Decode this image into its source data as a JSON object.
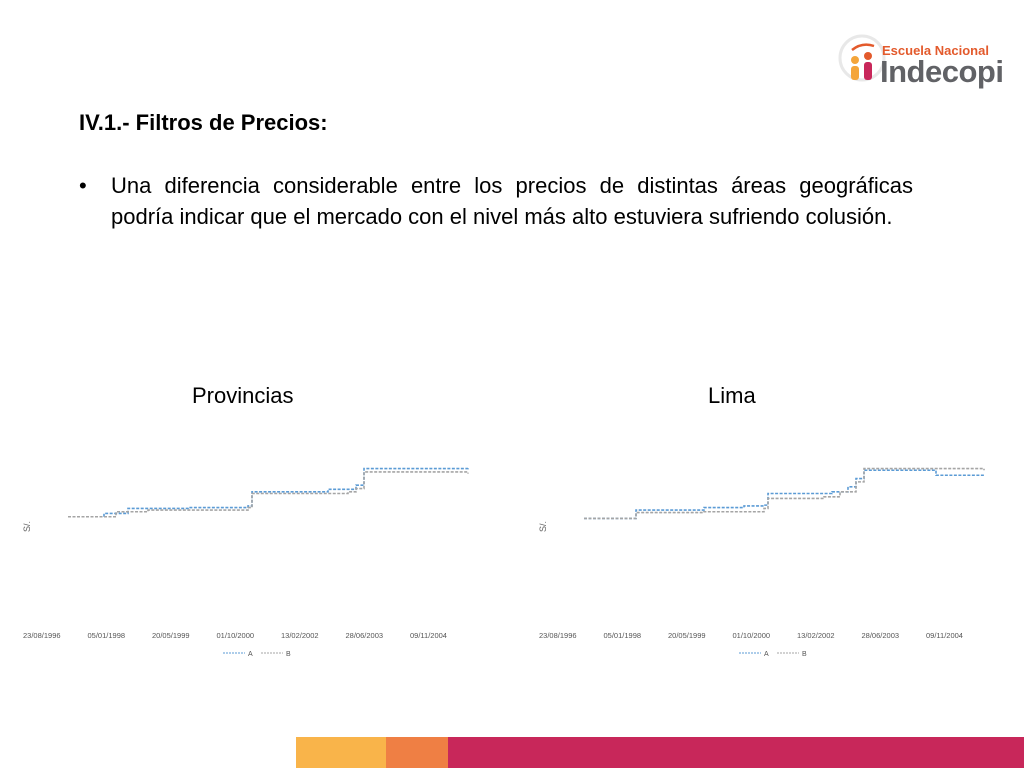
{
  "logo": {
    "line1": "Escuela Nacional",
    "line2": "Indecopi"
  },
  "slide": {
    "title": "IV.1.- Filtros de Precios:",
    "bullet_marker": "•",
    "bullet_text": "Una diferencia considerable entre los precios de distintas áreas geográficas podría indicar que el mercado con el nivel más alto estuviera sufriendo colusión."
  },
  "colors": {
    "series_a": "#5b9bd5",
    "series_b": "#a5a5a5",
    "band1": "#f9b44a",
    "band2": "#ef7f44",
    "band3": "#c8275a"
  },
  "chart_data": [
    {
      "type": "line",
      "title": "Provincias",
      "ylabel": "S/.",
      "xticks": [
        "23/08/1996",
        "05/01/1998",
        "20/05/1999",
        "01/10/2000",
        "13/02/2002",
        "28/06/2003",
        "09/11/2004"
      ],
      "series": [
        {
          "name": "A",
          "style": "dashed",
          "color": "#5b9bd5",
          "points": [
            [
              0,
              0.22
            ],
            [
              0.08,
              0.22
            ],
            [
              0.09,
              0.26
            ],
            [
              0.15,
              0.32
            ],
            [
              0.3,
              0.33
            ],
            [
              0.45,
              0.35
            ],
            [
              0.46,
              0.52
            ],
            [
              0.65,
              0.55
            ],
            [
              0.72,
              0.6
            ],
            [
              0.74,
              0.8
            ],
            [
              1.0,
              0.82
            ]
          ]
        },
        {
          "name": "B",
          "style": "dashed",
          "color": "#a5a5a5",
          "points": [
            [
              0,
              0.22
            ],
            [
              0.1,
              0.22
            ],
            [
              0.12,
              0.28
            ],
            [
              0.2,
              0.3
            ],
            [
              0.45,
              0.33
            ],
            [
              0.46,
              0.5
            ],
            [
              0.7,
              0.52
            ],
            [
              0.72,
              0.56
            ],
            [
              0.74,
              0.76
            ],
            [
              1.0,
              0.74
            ]
          ]
        }
      ]
    },
    {
      "type": "line",
      "title": "Lima",
      "ylabel": "S/.",
      "xticks": [
        "23/08/1996",
        "05/01/1998",
        "20/05/1999",
        "01/10/2000",
        "13/02/2002",
        "28/06/2003",
        "09/11/2004"
      ],
      "series": [
        {
          "name": "A",
          "style": "dashed",
          "color": "#5b9bd5",
          "points": [
            [
              0,
              0.2
            ],
            [
              0.12,
              0.2
            ],
            [
              0.13,
              0.3
            ],
            [
              0.3,
              0.33
            ],
            [
              0.4,
              0.35
            ],
            [
              0.45,
              0.36
            ],
            [
              0.46,
              0.5
            ],
            [
              0.62,
              0.52
            ],
            [
              0.66,
              0.58
            ],
            [
              0.68,
              0.68
            ],
            [
              0.7,
              0.78
            ],
            [
              0.85,
              0.78
            ],
            [
              0.88,
              0.72
            ],
            [
              1.0,
              0.72
            ]
          ]
        },
        {
          "name": "B",
          "style": "dashed",
          "color": "#a5a5a5",
          "points": [
            [
              0,
              0.2
            ],
            [
              0.12,
              0.2
            ],
            [
              0.13,
              0.27
            ],
            [
              0.3,
              0.28
            ],
            [
              0.45,
              0.32
            ],
            [
              0.46,
              0.44
            ],
            [
              0.6,
              0.46
            ],
            [
              0.64,
              0.52
            ],
            [
              0.68,
              0.64
            ],
            [
              0.7,
              0.8
            ],
            [
              0.85,
              0.8
            ],
            [
              1.0,
              0.78
            ]
          ]
        }
      ]
    }
  ]
}
